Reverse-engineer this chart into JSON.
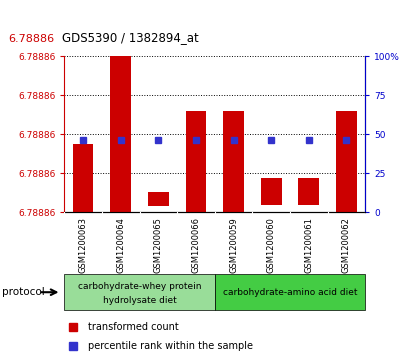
{
  "title": "GDS5390 / 1382894_at",
  "title_red": "6.78886",
  "samples": [
    "GSM1200063",
    "GSM1200064",
    "GSM1200065",
    "GSM1200066",
    "GSM1200059",
    "GSM1200060",
    "GSM1200061",
    "GSM1200062"
  ],
  "bar_color": "#cc0000",
  "blue_color": "#3333cc",
  "ylim_min": 6.788855,
  "ylim_max": 6.788871,
  "bar_tops_rel": [
    0.44,
    1.0,
    0.13,
    0.65,
    0.65,
    0.22,
    0.22,
    0.65
  ],
  "bar_bottoms_rel": [
    0.0,
    0.0,
    0.04,
    0.0,
    0.0,
    0.05,
    0.05,
    0.0
  ],
  "blue_rel": [
    0.465,
    0.465,
    0.465,
    0.465,
    0.465,
    0.465,
    0.465,
    0.465
  ],
  "right_ytick_labels": [
    "0",
    "25",
    "50",
    "75",
    "100%"
  ],
  "right_ytick_vals": [
    0,
    25,
    50,
    75,
    100
  ],
  "left_ytick_labels": [
    "6.78886",
    "6.78886",
    "6.78886",
    "6.78886",
    "6.78886"
  ],
  "left_ytick_rels": [
    0.0,
    0.25,
    0.5,
    0.75,
    1.0
  ],
  "group1_label_line1": "carbohydrate-whey protein",
  "group1_label_line2": "hydrolysate diet",
  "group2_label": "carbohydrate-amino acid diet",
  "group1_color": "#99dd99",
  "group2_color": "#44cc44",
  "group1_count": 4,
  "group2_count": 4,
  "protocol_label": "protocol",
  "legend_red_label": "transformed count",
  "legend_blue_label": "percentile rank within the sample",
  "sample_header_bg": "#cccccc",
  "bar_width": 0.55
}
